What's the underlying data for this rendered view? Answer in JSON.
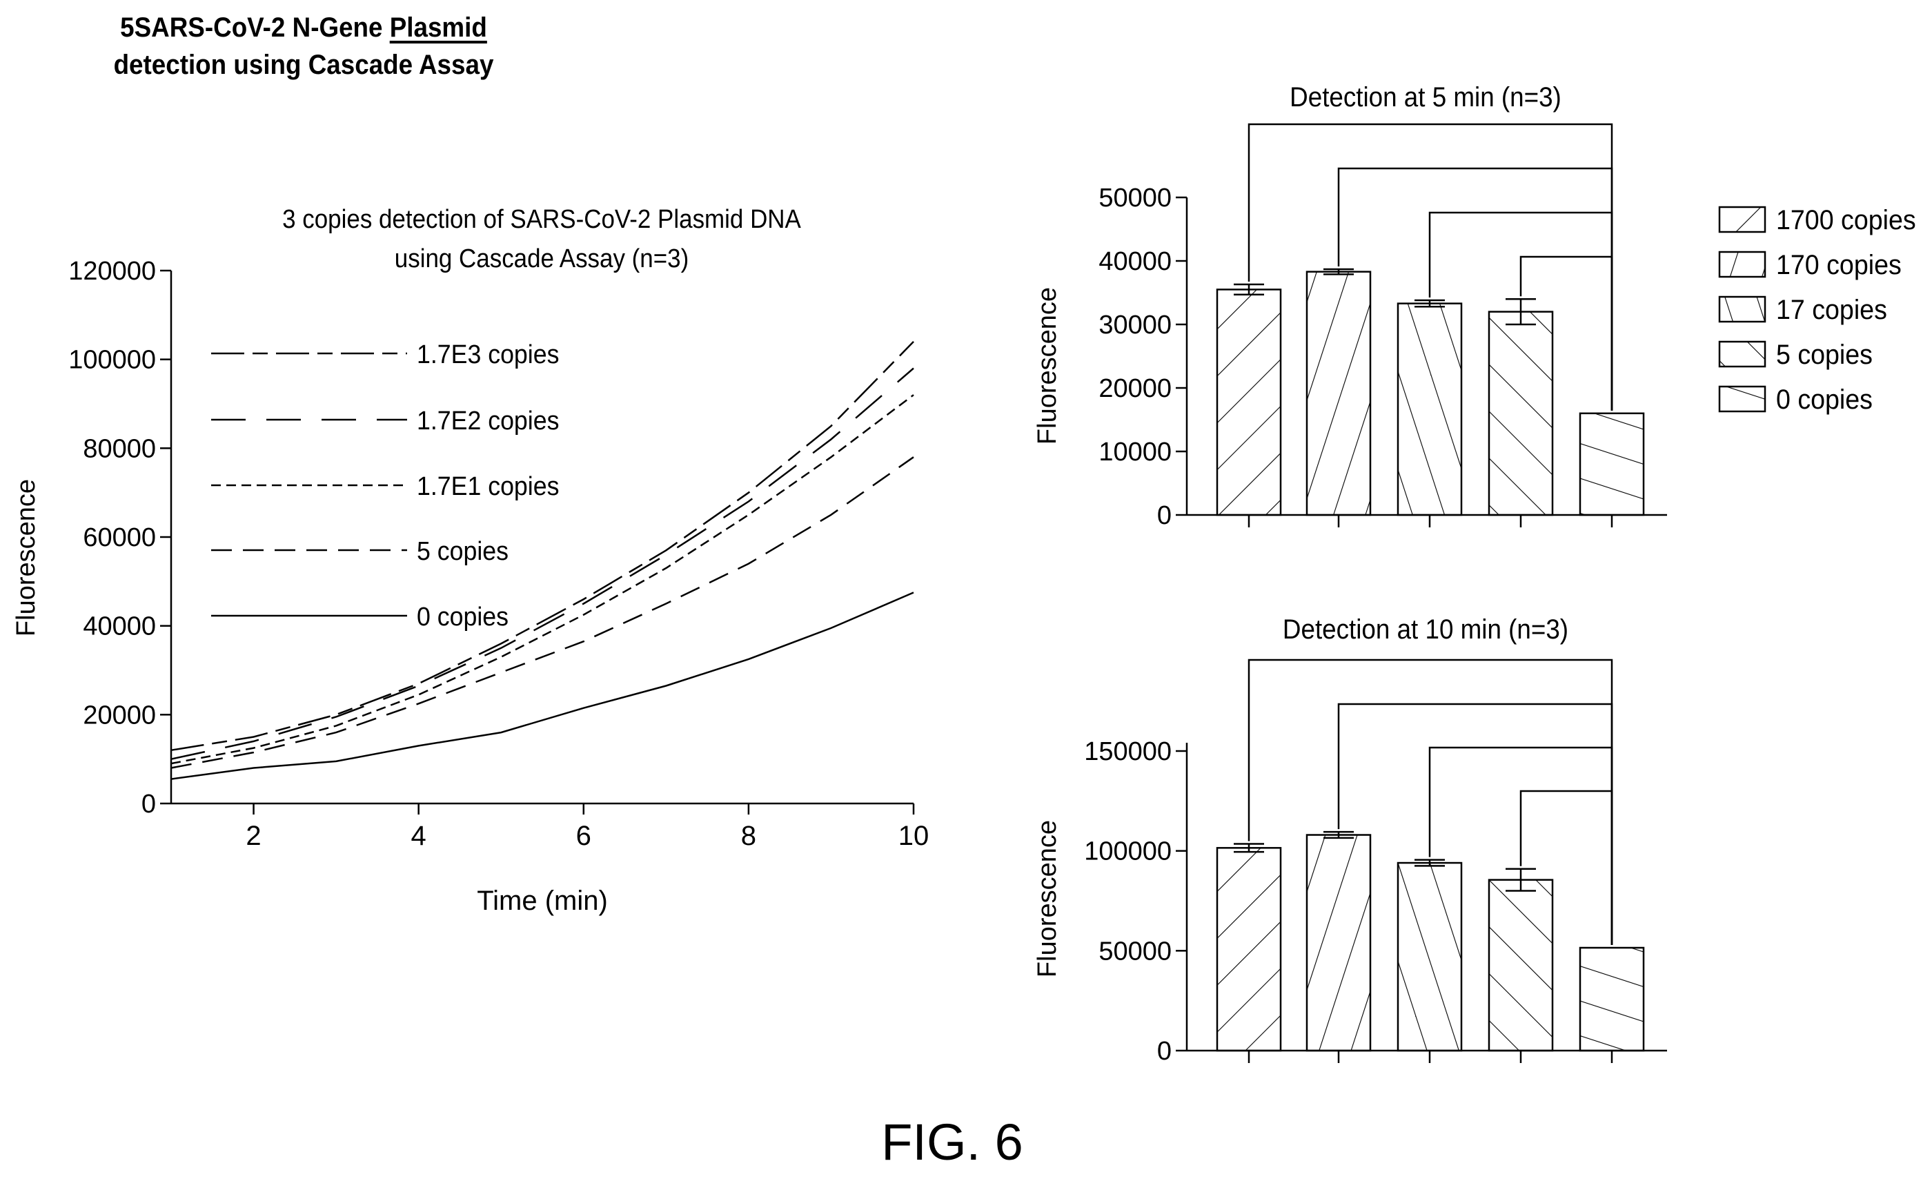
{
  "header": {
    "line1_a": "5SARS-CoV-2 N-Gene ",
    "line1_b": "Plasmid",
    "line2": "detection using Cascade Assay"
  },
  "figure_label": "FIG. 6",
  "chart_data": [
    {
      "type": "line",
      "title": "3 copies detection of SARS-CoV-2 Plasmid DNA",
      "subtitle": "using Cascade Assay (n=3)",
      "xlabel": "Time (min)",
      "ylabel": "Fluorescence",
      "xlim": [
        1,
        10
      ],
      "ylim": [
        0,
        120000
      ],
      "xticks": [
        2,
        4,
        6,
        8,
        10
      ],
      "yticks": [
        0,
        20000,
        40000,
        60000,
        80000,
        100000,
        120000
      ],
      "x": [
        1,
        2,
        3,
        4,
        5,
        6,
        7,
        8,
        9,
        10
      ],
      "legend_position": "top-left",
      "series": [
        {
          "name": "1.7E3 copies",
          "dash": "long-short",
          "values": [
            12000,
            15000,
            20000,
            27000,
            36000,
            46000,
            57000,
            70000,
            85000,
            104000
          ]
        },
        {
          "name": "1.7E2 copies",
          "dash": "long",
          "values": [
            10000,
            14000,
            19500,
            26500,
            35000,
            45000,
            56000,
            68000,
            82000,
            98000
          ]
        },
        {
          "name": "1.7E1 copies",
          "dash": "short",
          "values": [
            9000,
            12500,
            17500,
            24500,
            33000,
            42500,
            53000,
            65000,
            78000,
            92000
          ]
        },
        {
          "name": "5 copies",
          "dash": "medium",
          "values": [
            8000,
            11500,
            16000,
            22500,
            29500,
            36500,
            45000,
            54000,
            65000,
            78000
          ]
        },
        {
          "name": "0 copies",
          "dash": "solid",
          "values": [
            5500,
            8000,
            9500,
            13000,
            16000,
            21500,
            26500,
            32500,
            39500,
            47500
          ]
        }
      ]
    },
    {
      "type": "bar",
      "title": "Detection at 5 min (n=3)",
      "ylabel": "Fluorescence",
      "ylim": [
        0,
        50000
      ],
      "yticks": [
        0,
        10000,
        20000,
        30000,
        40000,
        50000
      ],
      "categories": [
        "1700 copies",
        "170 copies",
        "17 copies",
        "5 copies",
        "0 copies"
      ],
      "values": [
        35500,
        38300,
        33300,
        32000,
        16000
      ],
      "errors": [
        800,
        400,
        500,
        2000,
        0
      ],
      "comparisons": "each group vs 0 copies (brackets)",
      "legend_position": "right"
    },
    {
      "type": "bar",
      "title": "Detection at 10 min (n=3)",
      "ylabel": "Fluorescence",
      "ylim": [
        0,
        150000
      ],
      "yticks": [
        0,
        50000,
        100000,
        150000
      ],
      "categories": [
        "1700 copies",
        "170 copies",
        "17 copies",
        "5 copies",
        "0 copies"
      ],
      "values": [
        101500,
        108000,
        94000,
        85500,
        51500
      ],
      "errors": [
        2000,
        1500,
        1500,
        5500,
        0
      ],
      "comparisons": "each group vs 0 copies (brackets)"
    }
  ]
}
